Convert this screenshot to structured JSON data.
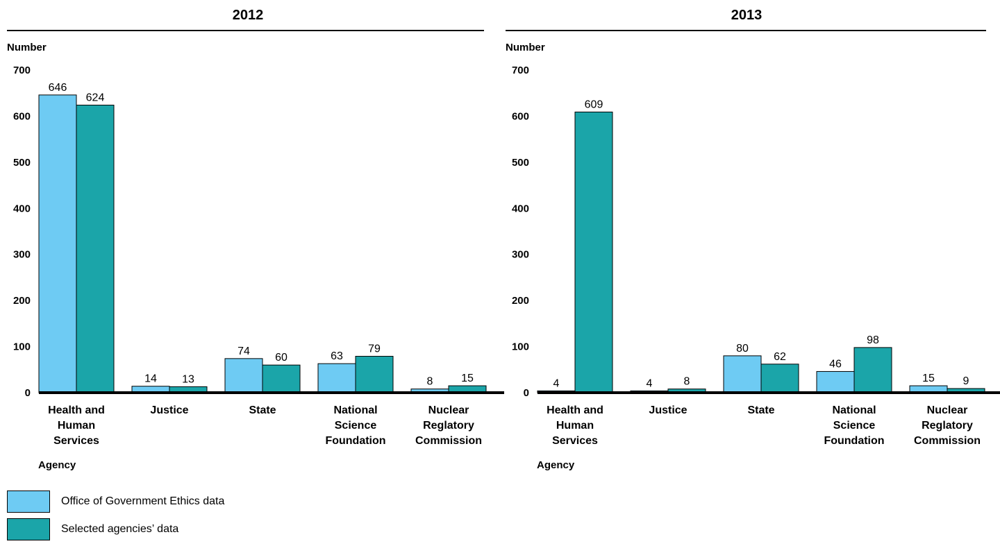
{
  "colors": {
    "series_1": "#6ECBF3",
    "series_2": "#1BA5A9"
  },
  "chart_data": [
    {
      "type": "bar",
      "title": "2012",
      "ylabel": "Number",
      "xlabel": "Agency",
      "ylim": [
        0,
        700
      ],
      "yticks": [
        0,
        100,
        200,
        300,
        400,
        500,
        600,
        700
      ],
      "categories": [
        [
          "Health and",
          "Human",
          "Services"
        ],
        [
          "Justice"
        ],
        [
          "State"
        ],
        [
          "National",
          "Science",
          "Foundation"
        ],
        [
          "Nuclear",
          "Reglatory",
          "Commission"
        ]
      ],
      "series": [
        {
          "name": "Office of Government Ethics data",
          "values": [
            646,
            14,
            74,
            63,
            8
          ]
        },
        {
          "name": "Selected agencies’ data",
          "values": [
            624,
            13,
            60,
            79,
            15
          ]
        }
      ]
    },
    {
      "type": "bar",
      "title": "2013",
      "ylabel": "Number",
      "xlabel": "Agency",
      "ylim": [
        0,
        700
      ],
      "yticks": [
        0,
        100,
        200,
        300,
        400,
        500,
        600,
        700
      ],
      "categories": [
        [
          "Health and",
          "Human",
          "Services"
        ],
        [
          "Justice"
        ],
        [
          "State"
        ],
        [
          "National",
          "Science",
          "Foundation"
        ],
        [
          "Nuclear",
          "Reglatory",
          "Commission"
        ]
      ],
      "series": [
        {
          "name": "Office of Government Ethics data",
          "values": [
            4,
            4,
            80,
            46,
            15
          ]
        },
        {
          "name": "Selected agencies’ data",
          "values": [
            609,
            8,
            62,
            98,
            9
          ]
        }
      ]
    }
  ],
  "legend": [
    {
      "label": "Office of Government Ethics data"
    },
    {
      "label": "Selected agencies’ data"
    }
  ]
}
